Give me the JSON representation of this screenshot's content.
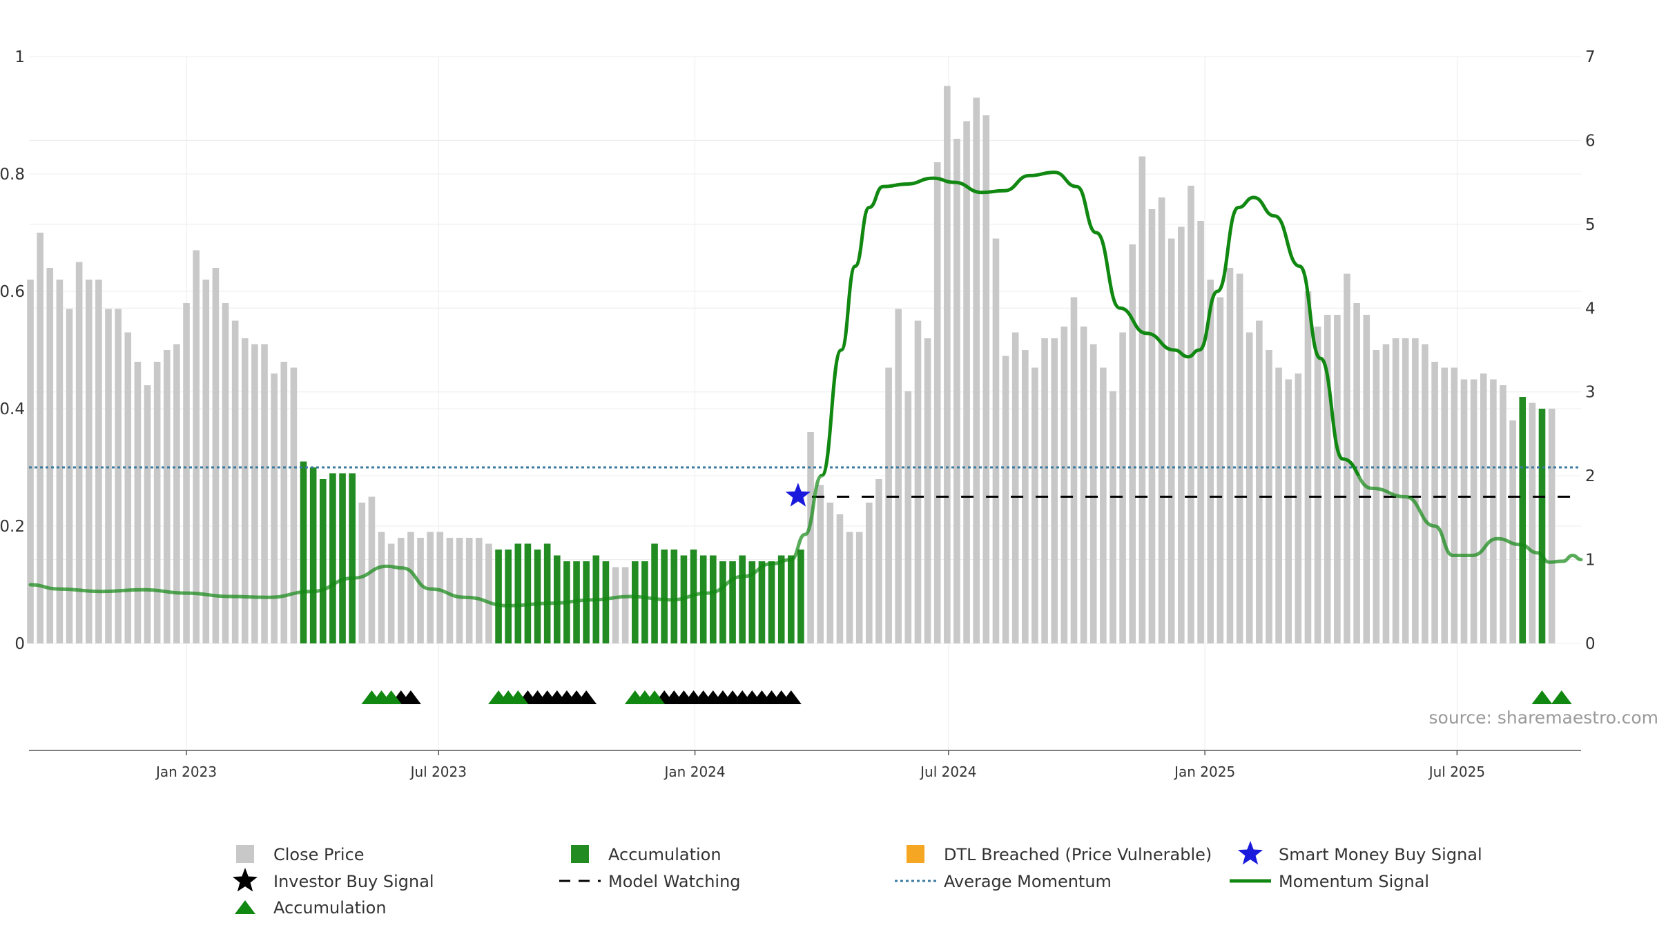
{
  "source": "source: sharemaestro.com",
  "colors": {
    "close_price": "#c8c8c8",
    "accumulation": "#228b22",
    "dtl_breached": "#f5a623",
    "smart_money": "#1a1adc",
    "investor_buy": "#000000",
    "model_watching": "#000000",
    "average_momentum": "#3a7aa0",
    "momentum_signal": "#118811",
    "grid": "#ececec"
  },
  "legend": [
    {
      "key": "close_price",
      "label": "Close Price",
      "marker": "square",
      "color": "#c8c8c8"
    },
    {
      "key": "accumulation_bar",
      "label": "Accumulation",
      "marker": "square",
      "color": "#228b22"
    },
    {
      "key": "dtl_breached",
      "label": "DTL Breached (Price Vulnerable)",
      "marker": "square",
      "color": "#f5a623"
    },
    {
      "key": "smart_money",
      "label": "Smart Money Buy Signal",
      "marker": "star",
      "color": "#1a1adc"
    },
    {
      "key": "investor_buy",
      "label": "Investor Buy Signal",
      "marker": "star",
      "color": "#000000"
    },
    {
      "key": "model_watching",
      "label": "Model Watching",
      "marker": "dash",
      "color": "#000000"
    },
    {
      "key": "average_momentum",
      "label": "Average Momentum",
      "marker": "dotted",
      "color": "#3a7aa0"
    },
    {
      "key": "momentum_signal",
      "label": "Momentum Signal",
      "marker": "line",
      "color": "#118811"
    },
    {
      "key": "accumulation_marker",
      "label": "Accumulation",
      "marker": "triangle",
      "color": "#118811"
    }
  ],
  "chart_data": {
    "type": "bar",
    "title": "",
    "xlabel": "",
    "ylabel_left": "",
    "ylabel_right": "",
    "left_axis": {
      "min": 0,
      "max": 1,
      "ticks": [
        0,
        0.2,
        0.4,
        0.6,
        0.8,
        1
      ],
      "tick_labels": [
        "0",
        "0.2",
        "0.4",
        "0.6",
        "0.8",
        "1"
      ]
    },
    "right_axis": {
      "min": 0,
      "max": 7,
      "ticks": [
        0,
        1,
        2,
        3,
        4,
        5,
        6,
        7
      ],
      "tick_labels": [
        "0",
        "1",
        "2",
        "3",
        "4",
        "5",
        "6",
        "7"
      ]
    },
    "x_axis": {
      "start": "2022-09-10",
      "end": "2025-09-28",
      "ticks": [
        {
          "date": "2023-01-01",
          "label": "Jan 2023"
        },
        {
          "date": "2023-07-01",
          "label": "Jul 2023"
        },
        {
          "date": "2024-01-01",
          "label": "Jan 2024"
        },
        {
          "date": "2024-07-01",
          "label": "Jul 2024"
        },
        {
          "date": "2025-01-01",
          "label": "Jan 2025"
        },
        {
          "date": "2025-07-01",
          "label": "Jul 2025"
        }
      ]
    },
    "grid": true,
    "legend_position": "bottom",
    "bars": {
      "start_date": "2022-09-11",
      "interval_days": 7,
      "close_price": [
        0.62,
        0.7,
        0.64,
        0.62,
        0.57,
        0.65,
        0.62,
        0.62,
        0.57,
        0.57,
        0.53,
        0.48,
        0.44,
        0.48,
        0.5,
        0.51,
        0.58,
        0.67,
        0.62,
        0.64,
        0.58,
        0.55,
        0.52,
        0.51,
        0.51,
        0.46,
        0.48,
        0.47,
        0.31,
        0.3,
        0.28,
        0.29,
        0.29,
        0.29,
        0.24,
        0.25,
        0.19,
        0.17,
        0.18,
        0.19,
        0.18,
        0.19,
        0.19,
        0.18,
        0.18,
        0.18,
        0.18,
        0.17,
        0.16,
        0.16,
        0.17,
        0.17,
        0.16,
        0.17,
        0.15,
        0.14,
        0.14,
        0.14,
        0.15,
        0.14,
        0.13,
        0.13,
        0.14,
        0.14,
        0.17,
        0.16,
        0.16,
        0.15,
        0.16,
        0.15,
        0.15,
        0.14,
        0.14,
        0.15,
        0.14,
        0.14,
        0.14,
        0.15,
        0.15,
        0.16,
        0.36,
        0.27,
        0.24,
        0.22,
        0.19,
        0.19,
        0.24,
        0.28,
        0.47,
        0.57,
        0.43,
        0.55,
        0.52,
        0.82,
        0.95,
        0.86,
        0.89,
        0.93,
        0.9,
        0.69,
        0.49,
        0.53,
        0.5,
        0.47,
        0.52,
        0.52,
        0.54,
        0.59,
        0.54,
        0.51,
        0.47,
        0.43,
        0.53,
        0.68,
        0.83,
        0.74,
        0.76,
        0.69,
        0.71,
        0.78,
        0.72,
        0.62,
        0.59,
        0.64,
        0.63,
        0.53,
        0.55,
        0.5,
        0.47,
        0.45,
        0.46,
        0.6,
        0.54,
        0.56,
        0.56,
        0.63,
        0.58,
        0.56,
        0.5,
        0.51,
        0.52,
        0.52,
        0.52,
        0.51,
        0.48,
        0.47,
        0.47,
        0.45,
        0.45,
        0.46,
        0.45,
        0.44,
        0.38,
        0.42,
        0.41,
        0.4,
        0.4
      ],
      "accumulation_ranges": [
        [
          28,
          33
        ],
        [
          48,
          59
        ],
        [
          62,
          79
        ],
        [
          153,
          153
        ],
        [
          155,
          155
        ]
      ]
    },
    "momentum_signal": [
      [
        "2022-09-11",
        0.7
      ],
      [
        "2022-10-01",
        0.65
      ],
      [
        "2022-11-01",
        0.62
      ],
      [
        "2022-12-01",
        0.64
      ],
      [
        "2023-01-01",
        0.6
      ],
      [
        "2023-02-01",
        0.56
      ],
      [
        "2023-03-01",
        0.55
      ],
      [
        "2023-04-01",
        0.62
      ],
      [
        "2023-05-01",
        0.78
      ],
      [
        "2023-05-25",
        0.92
      ],
      [
        "2023-06-05",
        0.9
      ],
      [
        "2023-06-25",
        0.65
      ],
      [
        "2023-07-20",
        0.55
      ],
      [
        "2023-08-20",
        0.45
      ],
      [
        "2023-09-20",
        0.48
      ],
      [
        "2023-10-20",
        0.52
      ],
      [
        "2023-11-15",
        0.56
      ],
      [
        "2023-12-15",
        0.52
      ],
      [
        "2024-01-10",
        0.6
      ],
      [
        "2024-02-05",
        0.8
      ],
      [
        "2024-02-25",
        0.95
      ],
      [
        "2024-03-10",
        1.0
      ],
      [
        "2024-03-20",
        1.3
      ],
      [
        "2024-04-01",
        2.0
      ],
      [
        "2024-04-15",
        3.5
      ],
      [
        "2024-04-25",
        4.5
      ],
      [
        "2024-05-05",
        5.2
      ],
      [
        "2024-05-15",
        5.45
      ],
      [
        "2024-06-01",
        5.48
      ],
      [
        "2024-06-20",
        5.55
      ],
      [
        "2024-07-05",
        5.5
      ],
      [
        "2024-07-25",
        5.38
      ],
      [
        "2024-08-10",
        5.4
      ],
      [
        "2024-08-28",
        5.58
      ],
      [
        "2024-09-15",
        5.62
      ],
      [
        "2024-10-01",
        5.45
      ],
      [
        "2024-10-15",
        4.9
      ],
      [
        "2024-11-01",
        4.0
      ],
      [
        "2024-11-20",
        3.7
      ],
      [
        "2024-12-10",
        3.5
      ],
      [
        "2024-12-20",
        3.42
      ],
      [
        "2024-12-28",
        3.5
      ],
      [
        "2025-01-10",
        4.2
      ],
      [
        "2025-01-25",
        5.2
      ],
      [
        "2025-02-05",
        5.32
      ],
      [
        "2025-02-20",
        5.1
      ],
      [
        "2025-03-10",
        4.5
      ],
      [
        "2025-03-25",
        3.4
      ],
      [
        "2025-04-10",
        2.2
      ],
      [
        "2025-05-01",
        1.85
      ],
      [
        "2025-05-25",
        1.75
      ],
      [
        "2025-06-15",
        1.4
      ],
      [
        "2025-06-28",
        1.05
      ],
      [
        "2025-07-12",
        1.05
      ],
      [
        "2025-07-30",
        1.25
      ],
      [
        "2025-08-15",
        1.18
      ],
      [
        "2025-08-28",
        1.08
      ],
      [
        "2025-09-05",
        0.97
      ],
      [
        "2025-09-15",
        0.98
      ],
      [
        "2025-09-22",
        1.05
      ],
      [
        "2025-09-28",
        1.0
      ]
    ],
    "average_momentum": 2.1,
    "model_watching": {
      "start": "2024-03-25",
      "end": "2025-09-28",
      "value": 1.75
    },
    "smart_money_buy": [
      {
        "date": "2024-03-15",
        "value": 1.76
      }
    ],
    "accumulation_markers": [
      "2023-05-14",
      "2023-05-21",
      "2023-05-28",
      "2023-08-13",
      "2023-08-20",
      "2023-08-27",
      "2023-11-19",
      "2023-11-26",
      "2023-12-03",
      "2025-08-31",
      "2025-09-14"
    ],
    "investor_buy_markers": [
      "2023-06-04",
      "2023-06-11",
      "2023-09-03",
      "2023-09-10",
      "2023-09-17",
      "2023-09-24",
      "2023-10-01",
      "2023-10-08",
      "2023-10-15",
      "2023-12-10",
      "2023-12-17",
      "2023-12-24",
      "2023-12-31",
      "2024-01-07",
      "2024-01-14",
      "2024-01-21",
      "2024-01-28",
      "2024-02-04",
      "2024-02-11",
      "2024-02-18",
      "2024-02-25",
      "2024-03-03",
      "2024-03-10"
    ]
  }
}
